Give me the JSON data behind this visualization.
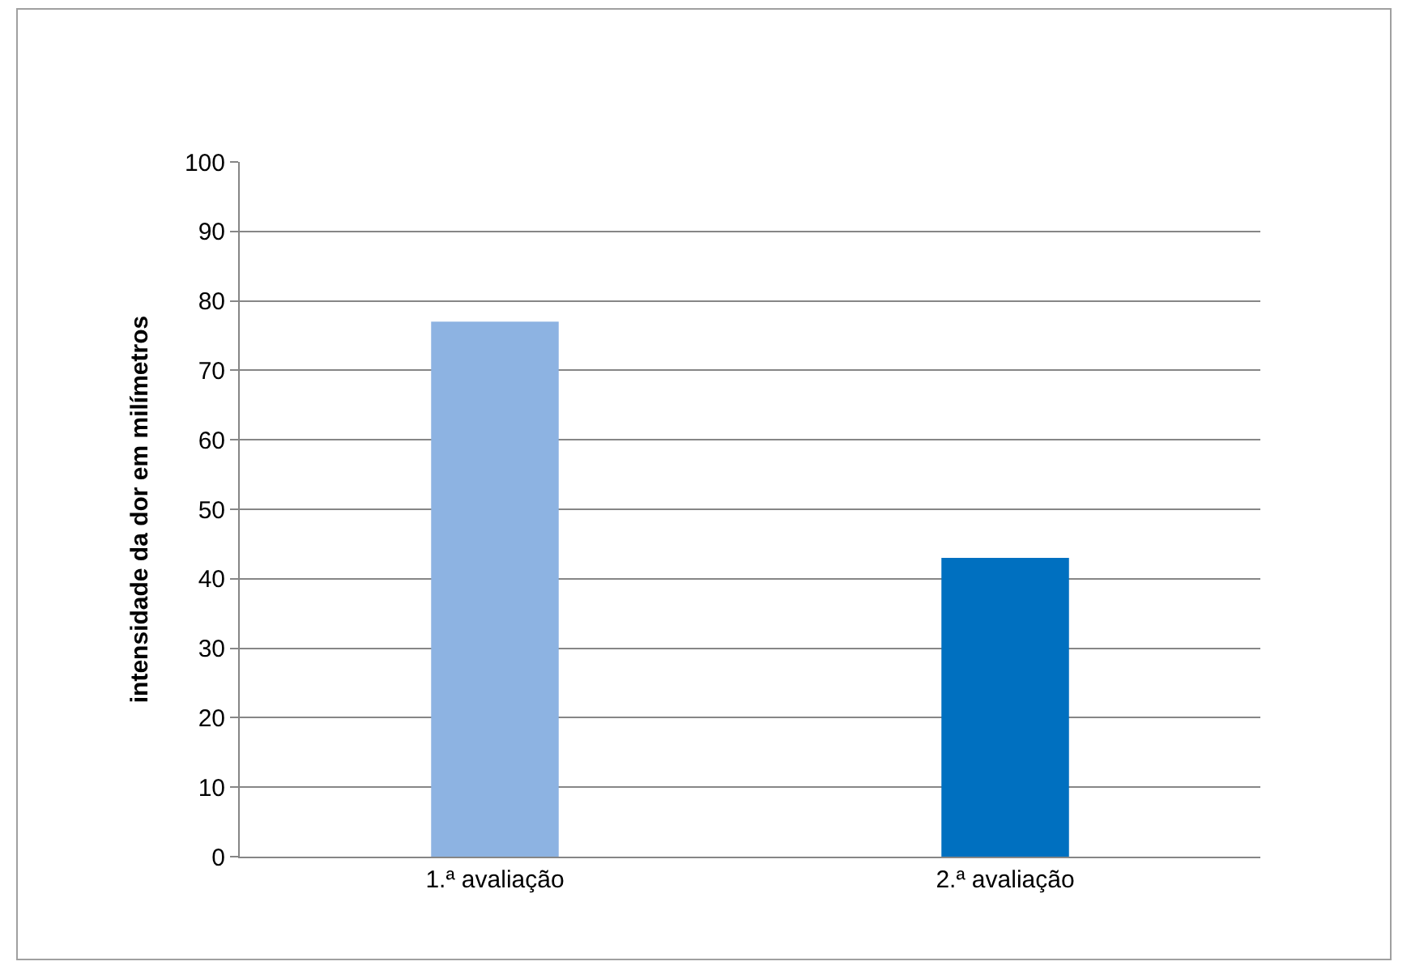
{
  "chart_data": {
    "type": "bar",
    "categories": [
      "1.ª avaliação",
      "2.ª avaliação"
    ],
    "values": [
      77,
      43
    ],
    "colors": [
      "#8db3e2",
      "#0070c0"
    ],
    "ylabel": "intensidade da dor em milímetros",
    "ylim": [
      0,
      100
    ],
    "yticks": [
      0,
      10,
      20,
      30,
      40,
      50,
      60,
      70,
      80,
      90,
      100
    ],
    "grid": "y"
  }
}
